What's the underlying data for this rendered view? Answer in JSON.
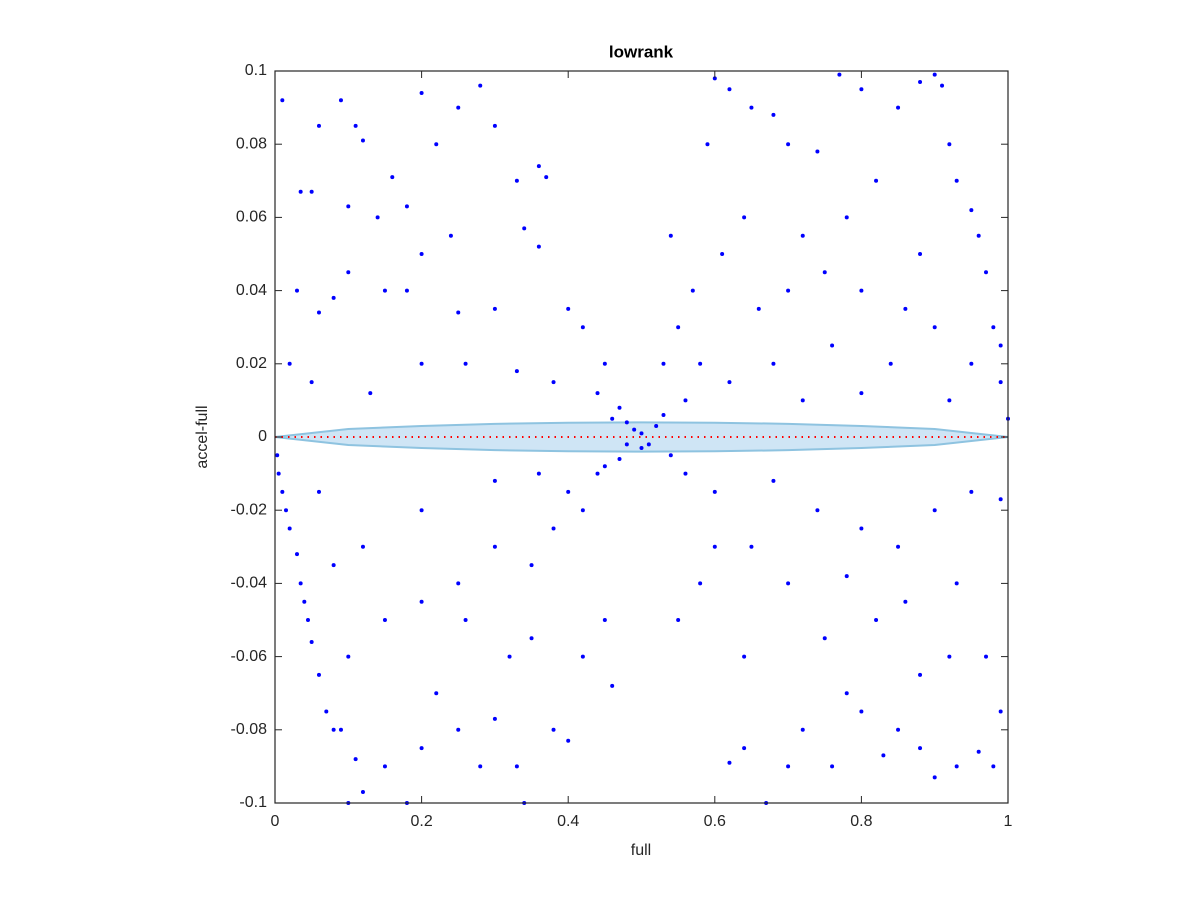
{
  "chart_data": {
    "type": "scatter",
    "title": "lowrank",
    "x_label": "full",
    "y_label": "accel-full",
    "xlim": [
      0,
      1
    ],
    "ylim": [
      -0.1,
      0.1
    ],
    "xticks": [
      0,
      0.2,
      0.4,
      0.6,
      0.8,
      1
    ],
    "yticks": [
      -0.1,
      -0.08,
      -0.06,
      -0.04,
      -0.02,
      0,
      0.02,
      0.04,
      0.06,
      0.08,
      0.1
    ],
    "grid": false,
    "band": {
      "color": "#cfe5f5",
      "edge_color": "#8ec3e0",
      "x": [
        0,
        0.1,
        0.2,
        0.3,
        0.4,
        0.5,
        0.6,
        0.7,
        0.8,
        0.9,
        1
      ],
      "upper": [
        0,
        0.0022,
        0.003,
        0.0036,
        0.0039,
        0.004,
        0.0039,
        0.0036,
        0.003,
        0.0022,
        0
      ],
      "lower": [
        0,
        -0.0022,
        -0.003,
        -0.0036,
        -0.0039,
        -0.004,
        -0.0039,
        -0.0036,
        -0.003,
        -0.0022,
        0
      ]
    },
    "reference_line": {
      "y": 0,
      "color": "#ff0000"
    },
    "series": [
      {
        "color": "#0000ff",
        "x": [
          0.003,
          0.005,
          0.01,
          0.015,
          0.02,
          0.03,
          0.035,
          0.04,
          0.045,
          0.05,
          0.06,
          0.07,
          0.08,
          0.01,
          0.06,
          0.09,
          0.11,
          0.12,
          0.035,
          0.05,
          0.2,
          0.22,
          0.25,
          0.28,
          0.18,
          0.1,
          0.14,
          0.16,
          0.3,
          0.33,
          0.36,
          0.37,
          0.34,
          0.36,
          0.2,
          0.24,
          0.1,
          0.08,
          0.15,
          0.18,
          0.03,
          0.06,
          0.25,
          0.26,
          0.13,
          0.05,
          0.02,
          0.2,
          0.3,
          0.4,
          0.42,
          0.45,
          0.38,
          0.33,
          0.44,
          0.47,
          0.48,
          0.49,
          0.5,
          0.51,
          0.5,
          0.52,
          0.48,
          0.47,
          0.53,
          0.46,
          0.54,
          0.6,
          0.62,
          0.65,
          0.68,
          0.7,
          0.59,
          0.74,
          0.77,
          0.8,
          0.85,
          0.88,
          0.9,
          0.91,
          0.92,
          0.93,
          0.95,
          0.97,
          0.96,
          0.99,
          0.98,
          0.99,
          1.0,
          0.82,
          0.78,
          0.72,
          0.64,
          0.61,
          0.57,
          0.55,
          0.58,
          0.56,
          0.66,
          0.7,
          0.75,
          0.8,
          0.86,
          0.9,
          0.88,
          0.84,
          0.76,
          0.68,
          0.62,
          0.72,
          0.8,
          0.92,
          0.95,
          0.54,
          0.53,
          0.1,
          0.12,
          0.18,
          0.09,
          0.11,
          0.15,
          0.2,
          0.22,
          0.25,
          0.28,
          0.3,
          0.33,
          0.34,
          0.38,
          0.4,
          0.42,
          0.45,
          0.46,
          0.1,
          0.15,
          0.2,
          0.25,
          0.3,
          0.35,
          0.38,
          0.4,
          0.42,
          0.44,
          0.45,
          0.36,
          0.3,
          0.2,
          0.12,
          0.08,
          0.06,
          0.26,
          0.32,
          0.35,
          0.55,
          0.58,
          0.6,
          0.62,
          0.64,
          0.67,
          0.7,
          0.72,
          0.76,
          0.78,
          0.8,
          0.83,
          0.85,
          0.88,
          0.9,
          0.93,
          0.96,
          0.98,
          0.99,
          0.97,
          0.92,
          0.88,
          0.82,
          0.75,
          0.7,
          0.65,
          0.6,
          0.56,
          0.68,
          0.74,
          0.8,
          0.85,
          0.9,
          0.95,
          0.99,
          0.93,
          0.86,
          0.78,
          0.64
        ],
        "values": [
          -0.005,
          -0.01,
          -0.015,
          -0.02,
          -0.025,
          -0.032,
          -0.04,
          -0.045,
          -0.05,
          -0.056,
          -0.065,
          -0.075,
          -0.08,
          0.092,
          0.085,
          0.092,
          0.085,
          0.081,
          0.067,
          0.067,
          0.094,
          0.08,
          0.09,
          0.096,
          0.063,
          0.063,
          0.06,
          0.071,
          0.085,
          0.07,
          0.074,
          0.071,
          0.057,
          0.052,
          0.05,
          0.055,
          0.045,
          0.038,
          0.04,
          0.04,
          0.04,
          0.034,
          0.034,
          0.02,
          0.012,
          0.015,
          0.02,
          0.02,
          0.035,
          0.035,
          0.03,
          0.02,
          0.015,
          0.018,
          0.012,
          0.008,
          0.004,
          0.002,
          0.001,
          -0.002,
          -0.003,
          0.003,
          -0.002,
          -0.006,
          0.006,
          0.005,
          -0.005,
          0.098,
          0.095,
          0.09,
          0.088,
          0.08,
          0.08,
          0.078,
          0.099,
          0.095,
          0.09,
          0.097,
          0.099,
          0.096,
          0.08,
          0.07,
          0.062,
          0.045,
          0.055,
          0.025,
          0.03,
          0.015,
          0.005,
          0.07,
          0.06,
          0.055,
          0.06,
          0.05,
          0.04,
          0.03,
          0.02,
          0.01,
          0.035,
          0.04,
          0.045,
          0.04,
          0.035,
          0.03,
          0.05,
          0.02,
          0.025,
          0.02,
          0.015,
          0.01,
          0.012,
          0.01,
          0.02,
          0.055,
          0.02,
          -0.1,
          -0.097,
          -0.1,
          -0.08,
          -0.088,
          -0.09,
          -0.085,
          -0.07,
          -0.08,
          -0.09,
          -0.077,
          -0.09,
          -0.1,
          -0.08,
          -0.083,
          -0.06,
          -0.05,
          -0.068,
          -0.06,
          -0.05,
          -0.045,
          -0.04,
          -0.03,
          -0.035,
          -0.025,
          -0.015,
          -0.02,
          -0.01,
          -0.008,
          -0.01,
          -0.012,
          -0.02,
          -0.03,
          -0.035,
          -0.015,
          -0.05,
          -0.06,
          -0.055,
          -0.05,
          -0.04,
          -0.03,
          -0.089,
          -0.085,
          -0.1,
          -0.09,
          -0.08,
          -0.09,
          -0.07,
          -0.075,
          -0.087,
          -0.08,
          -0.085,
          -0.093,
          -0.09,
          -0.086,
          -0.09,
          -0.075,
          -0.06,
          -0.06,
          -0.065,
          -0.05,
          -0.055,
          -0.04,
          -0.03,
          -0.015,
          -0.01,
          -0.012,
          -0.02,
          -0.025,
          -0.03,
          -0.02,
          -0.015,
          -0.017,
          -0.04,
          -0.045,
          -0.038,
          -0.06
        ]
      }
    ]
  }
}
